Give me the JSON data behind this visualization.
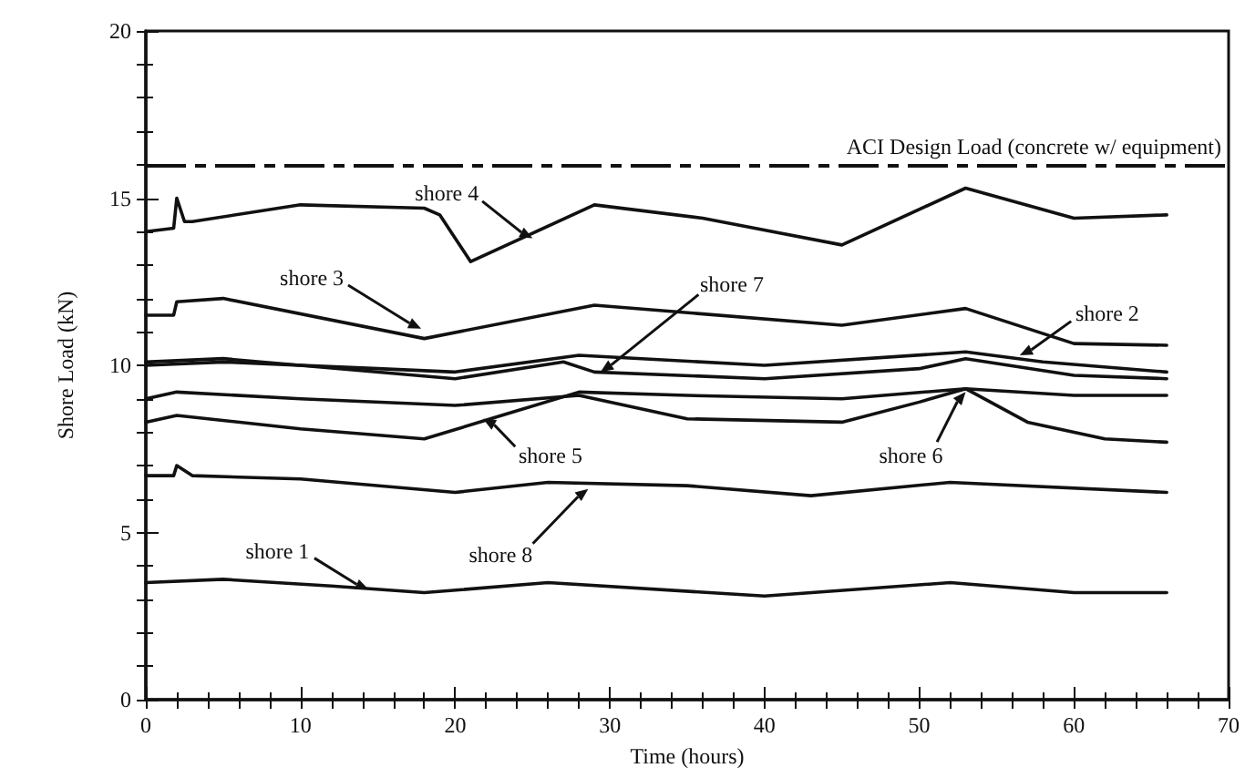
{
  "chart_data": {
    "type": "line",
    "xlabel": "Time (hours)",
    "ylabel": "Shore Load (kN)",
    "xlim": [
      0,
      70
    ],
    "xticks": [
      0,
      10,
      20,
      30,
      40,
      50,
      60,
      70
    ],
    "ylim": [
      0,
      20
    ],
    "yticks": [
      0,
      5,
      10,
      15,
      20
    ],
    "marker": "none",
    "line_style": "solid",
    "series": [
      {
        "color": "#111111",
        "x": [
          0,
          1.8,
          2,
          2.5,
          3,
          10,
          18,
          19,
          21,
          29,
          36,
          45,
          53,
          60,
          66
        ],
        "values": [
          14.0,
          14.1,
          15.0,
          14.3,
          14.3,
          14.8,
          14.7,
          14.5,
          13.1,
          14.8,
          14.4,
          13.6,
          15.3,
          14.4,
          14.5
        ]
      },
      {
        "color": "#111111",
        "x": [
          0,
          1.8,
          2,
          5,
          18,
          29,
          45,
          53,
          60,
          66
        ],
        "values": [
          11.5,
          11.5,
          11.9,
          12.0,
          10.8,
          11.8,
          11.2,
          11.7,
          10.65,
          10.6
        ]
      },
      {
        "color": "#111111",
        "x": [
          0,
          5,
          15,
          20,
          28,
          40,
          53,
          58,
          66
        ],
        "values": [
          10.0,
          10.1,
          9.9,
          9.8,
          10.3,
          10.0,
          10.4,
          10.1,
          9.8
        ]
      },
      {
        "color": "#111111",
        "x": [
          0,
          5,
          20,
          27,
          29,
          40,
          50,
          53,
          60,
          66
        ],
        "values": [
          10.1,
          10.2,
          9.6,
          10.1,
          9.8,
          9.6,
          9.9,
          10.2,
          9.7,
          9.6
        ]
      },
      {
        "color": "#111111",
        "x": [
          0,
          2,
          10,
          20,
          28,
          35,
          45,
          50,
          53,
          57,
          62,
          66
        ],
        "values": [
          9.0,
          9.2,
          9.0,
          8.8,
          9.1,
          8.4,
          8.3,
          8.9,
          9.3,
          8.3,
          7.8,
          7.7
        ]
      },
      {
        "color": "#111111",
        "x": [
          0,
          2,
          10,
          18,
          23,
          28,
          35,
          45,
          53,
          60,
          66
        ],
        "values": [
          8.3,
          8.5,
          8.1,
          7.8,
          8.5,
          9.2,
          9.1,
          9.0,
          9.3,
          9.1,
          9.1
        ]
      },
      {
        "color": "#111111",
        "x": [
          0,
          1.8,
          2,
          3,
          10,
          20,
          26,
          35,
          43,
          52,
          66
        ],
        "values": [
          6.7,
          6.7,
          7.0,
          6.7,
          6.6,
          6.2,
          6.5,
          6.4,
          6.1,
          6.5,
          6.2
        ]
      },
      {
        "color": "#111111",
        "x": [
          0,
          5,
          12,
          18,
          26,
          40,
          52,
          60,
          66
        ],
        "values": [
          3.5,
          3.6,
          3.4,
          3.2,
          3.5,
          3.1,
          3.5,
          3.2,
          3.2
        ]
      }
    ],
    "ref_lines": [
      {
        "axis": "y",
        "value": 16,
        "label": "ACI Design Load (concrete w/ equipment)",
        "color": "#111111",
        "line_style": "dashed"
      }
    ],
    "annotations": [
      {
        "text": "shore 4",
        "x": 25,
        "y": 13.8
      },
      {
        "text": "shore 3",
        "x": 17.8,
        "y": 11.1
      },
      {
        "text": "shore 7",
        "x": 29.4,
        "y": 9.8
      },
      {
        "text": "shore 2",
        "x": 56.5,
        "y": 10.3
      },
      {
        "text": "shore 5",
        "x": 21.8,
        "y": 8.4
      },
      {
        "text": "shore 6",
        "x": 53,
        "y": 9.2
      },
      {
        "text": "shore 8",
        "x": 28.6,
        "y": 6.3
      },
      {
        "text": "shore 1",
        "x": 14.4,
        "y": 3.3
      }
    ]
  }
}
